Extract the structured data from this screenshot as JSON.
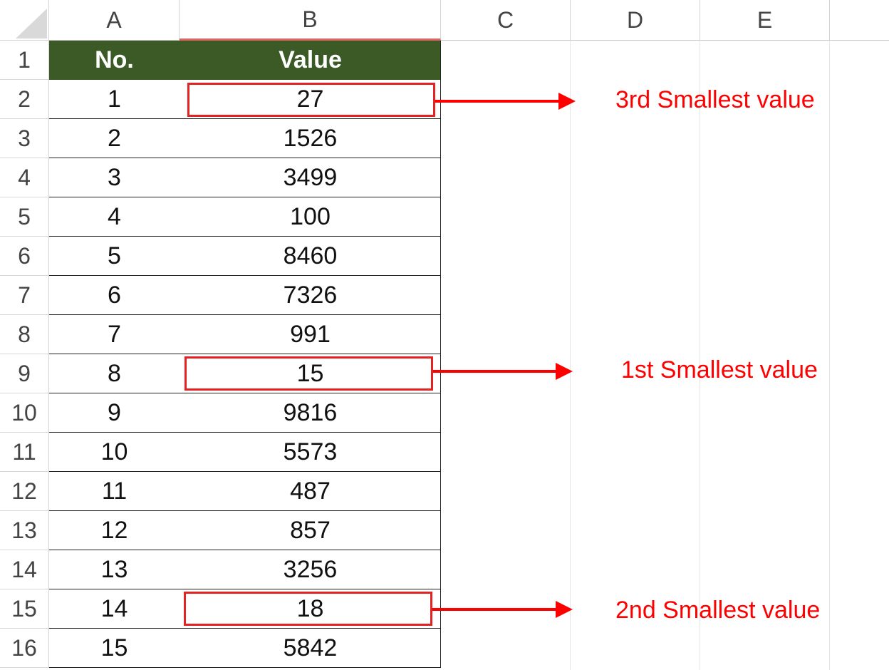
{
  "columns": [
    "A",
    "B",
    "C",
    "D",
    "E"
  ],
  "rows": [
    "1",
    "2",
    "3",
    "4",
    "5",
    "6",
    "7",
    "8",
    "9",
    "10",
    "11",
    "12",
    "13",
    "14",
    "15",
    "16"
  ],
  "table": {
    "headers": [
      "No.",
      "Value"
    ],
    "data": [
      [
        "1",
        "27"
      ],
      [
        "2",
        "1526"
      ],
      [
        "3",
        "3499"
      ],
      [
        "4",
        "100"
      ],
      [
        "5",
        "8460"
      ],
      [
        "6",
        "7326"
      ],
      [
        "7",
        "991"
      ],
      [
        "8",
        "15"
      ],
      [
        "9",
        "9816"
      ],
      [
        "10",
        "5573"
      ],
      [
        "11",
        "487"
      ],
      [
        "12",
        "857"
      ],
      [
        "13",
        "3256"
      ],
      [
        "14",
        "18"
      ],
      [
        "15",
        "5842"
      ]
    ]
  },
  "annotations": {
    "third": "3rd Smallest value",
    "first": "1st Smallest value",
    "second": "2nd Smallest value"
  },
  "colors": {
    "header_fill": "#3b5a26",
    "highlight": "#ff0000"
  }
}
